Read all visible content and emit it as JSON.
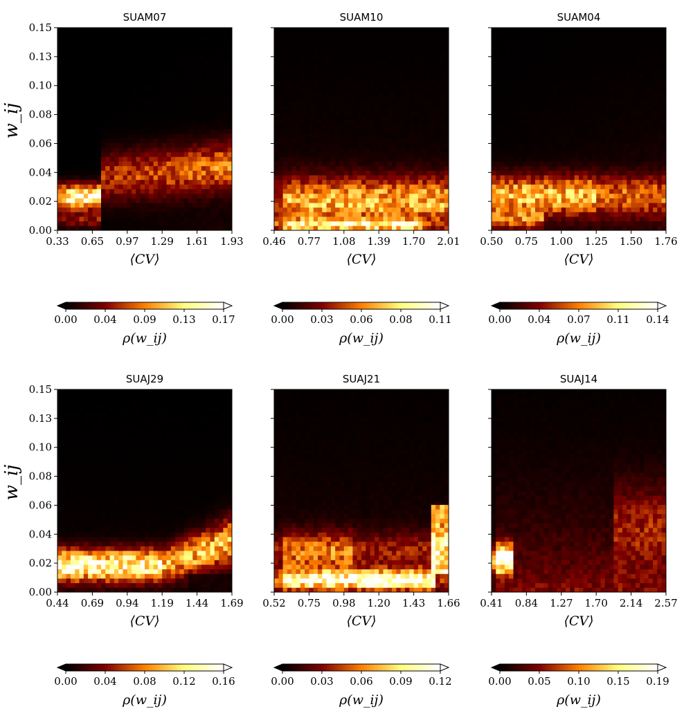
{
  "chart_data": [
    {
      "type": "heatmap",
      "title": "SUAM07",
      "xlabel": "⟨CV⟩",
      "ylabel": "w_ij",
      "x_ticks": [
        "0.33",
        "0.65",
        "0.97",
        "1.29",
        "1.61",
        "1.93"
      ],
      "y_ticks": [
        "0.00",
        "0.02",
        "0.04",
        "0.06",
        "0.08",
        "0.10",
        "0.13",
        "0.15"
      ],
      "xlim": [
        0.33,
        1.93
      ],
      "ylim": [
        0.0,
        0.15
      ],
      "colorbar": {
        "label": "ρ(w_ij)",
        "ticks": [
          "0.00",
          "0.04",
          "0.09",
          "0.13",
          "0.17"
        ],
        "range": [
          0.0,
          0.17
        ],
        "colormap": "afmhot"
      },
      "features": {
        "band_center": 0.04,
        "band_width": 0.012,
        "hot_spot": {
          "x": 0.45,
          "y": 0.025,
          "value": 0.17
        }
      }
    },
    {
      "type": "heatmap",
      "title": "SUAM10",
      "xlabel": "⟨CV⟩",
      "ylabel": "",
      "x_ticks": [
        "0.46",
        "0.77",
        "1.08",
        "1.39",
        "1.70",
        "2.01"
      ],
      "y_ticks": [
        "0.00",
        "0.02",
        "0.04",
        "0.06",
        "0.08",
        "0.10",
        "0.13",
        "0.15"
      ],
      "xlim": [
        0.46,
        2.01
      ],
      "ylim": [
        0.0,
        0.15
      ],
      "colorbar": {
        "label": "ρ(w_ij)",
        "ticks": [
          "0.00",
          "0.03",
          "0.06",
          "0.08",
          "0.11"
        ],
        "range": [
          0.0,
          0.11
        ],
        "colormap": "afmhot"
      },
      "features": {
        "band_center": 0.02,
        "band_width": 0.014,
        "hot_spot": {
          "x": 0.9,
          "y": 0.01,
          "value": 0.11
        }
      }
    },
    {
      "type": "heatmap",
      "title": "SUAM04",
      "xlabel": "⟨CV⟩",
      "ylabel": "",
      "x_ticks": [
        "0.50",
        "0.75",
        "1.00",
        "1.25",
        "1.50",
        "1.76"
      ],
      "y_ticks": [
        "0.00",
        "0.02",
        "0.04",
        "0.06",
        "0.08",
        "0.10",
        "0.13",
        "0.15"
      ],
      "xlim": [
        0.5,
        1.76
      ],
      "ylim": [
        0.0,
        0.15
      ],
      "colorbar": {
        "label": "ρ(w_ij)",
        "ticks": [
          "0.00",
          "0.04",
          "0.07",
          "0.11",
          "0.14"
        ],
        "range": [
          0.0,
          0.14
        ],
        "colormap": "afmhot"
      },
      "features": {
        "band_center": 0.028,
        "band_width": 0.012,
        "hot_spot": {
          "x": 1.0,
          "y": 0.027,
          "value": 0.14
        }
      }
    },
    {
      "type": "heatmap",
      "title": "SUAJ29",
      "xlabel": "⟨CV⟩",
      "ylabel": "w_ij",
      "x_ticks": [
        "0.44",
        "0.69",
        "0.94",
        "1.19",
        "1.44",
        "1.69"
      ],
      "y_ticks": [
        "0.00",
        "0.02",
        "0.04",
        "0.06",
        "0.08",
        "0.10",
        "0.13",
        "0.15"
      ],
      "xlim": [
        0.44,
        1.69
      ],
      "ylim": [
        0.0,
        0.15
      ],
      "colorbar": {
        "label": "ρ(w_ij)",
        "ticks": [
          "0.00",
          "0.04",
          "0.08",
          "0.12",
          "0.16"
        ],
        "range": [
          0.0,
          0.16
        ],
        "colormap": "afmhot"
      },
      "features": {
        "band_center": 0.022,
        "band_width": 0.012,
        "hot_spot": {
          "x": 0.55,
          "y": 0.02,
          "value": 0.16
        }
      }
    },
    {
      "type": "heatmap",
      "title": "SUAJ21",
      "xlabel": "⟨CV⟩",
      "ylabel": "",
      "x_ticks": [
        "0.52",
        "0.75",
        "0.98",
        "1.20",
        "1.43",
        "1.66"
      ],
      "y_ticks": [
        "0.00",
        "0.02",
        "0.04",
        "0.06",
        "0.08",
        "0.10",
        "0.13",
        "0.15"
      ],
      "xlim": [
        0.52,
        1.66
      ],
      "ylim": [
        0.0,
        0.15
      ],
      "colorbar": {
        "label": "ρ(w_ij)",
        "ticks": [
          "0.00",
          "0.03",
          "0.06",
          "0.09",
          "0.12"
        ],
        "range": [
          0.0,
          0.12
        ],
        "colormap": "afmhot"
      },
      "features": {
        "band_center": 0.008,
        "band_width": 0.006,
        "hot_spot": {
          "x": 1.1,
          "y": 0.008,
          "value": 0.12
        }
      }
    },
    {
      "type": "heatmap",
      "title": "SUAJ14",
      "xlabel": "⟨CV⟩",
      "ylabel": "",
      "x_ticks": [
        "0.41",
        "0.84",
        "1.27",
        "1.70",
        "2.14",
        "2.57"
      ],
      "y_ticks": [
        "0.00",
        "0.02",
        "0.04",
        "0.06",
        "0.08",
        "0.10",
        "0.13",
        "0.15"
      ],
      "xlim": [
        0.41,
        2.57
      ],
      "ylim": [
        0.0,
        0.15
      ],
      "colorbar": {
        "label": "ρ(w_ij)",
        "ticks": [
          "0.00",
          "0.05",
          "0.10",
          "0.15",
          "0.19"
        ],
        "range": [
          0.0,
          0.19
        ],
        "colormap": "afmhot"
      },
      "features": {
        "band_center": 0.025,
        "band_width": 0.01,
        "hot_spot": {
          "x": 0.5,
          "y": 0.025,
          "value": 0.19
        }
      }
    }
  ]
}
